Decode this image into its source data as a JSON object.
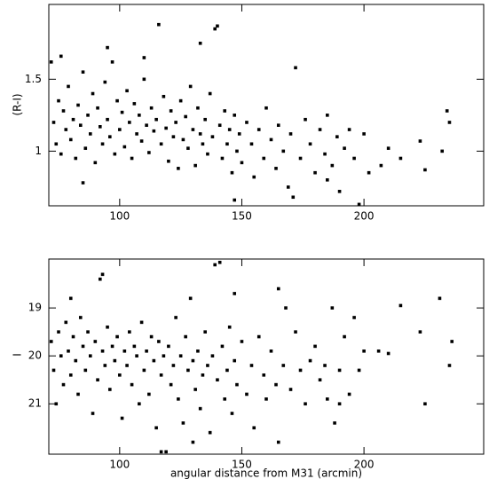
{
  "chart_data": [
    {
      "type": "scatter",
      "y_label": "(R-I)",
      "color": "#000000",
      "xlim": [
        71,
        249
      ],
      "ylim": [
        0.62,
        2.02
      ],
      "xticks": [
        100,
        150,
        200
      ],
      "yticks": [
        1,
        1.5
      ],
      "y_inverted": false,
      "x": [
        72,
        73,
        74,
        75,
        76,
        77,
        78,
        79,
        80,
        81,
        82,
        83,
        84,
        85,
        86,
        87,
        88,
        89,
        90,
        91,
        92,
        93,
        94,
        95,
        96,
        97,
        98,
        99,
        100,
        101,
        102,
        103,
        104,
        105,
        106,
        107,
        108,
        109,
        110,
        111,
        112,
        113,
        114,
        115,
        116,
        117,
        118,
        119,
        120,
        121,
        122,
        123,
        124,
        125,
        126,
        127,
        128,
        129,
        130,
        131,
        132,
        133,
        134,
        135,
        136,
        137,
        138,
        139,
        140,
        141,
        142,
        143,
        144,
        145,
        146,
        147,
        148,
        149,
        150,
        152,
        154,
        155,
        157,
        159,
        160,
        162,
        164,
        165,
        167,
        169,
        170,
        172,
        174,
        176,
        178,
        180,
        182,
        184,
        185,
        187,
        189,
        190,
        192,
        194,
        196,
        200,
        202,
        207,
        215,
        223,
        225,
        232,
        234,
        235,
        76,
        85,
        95,
        110,
        133,
        147,
        171,
        185,
        198,
        210
      ],
      "values": [
        1.62,
        1.2,
        1.05,
        1.35,
        0.98,
        1.28,
        1.15,
        1.45,
        1.08,
        1.22,
        0.95,
        1.32,
        1.18,
        1.55,
        1.02,
        1.25,
        1.12,
        1.4,
        0.92,
        1.3,
        1.17,
        1.05,
        1.48,
        1.22,
        1.1,
        1.62,
        0.98,
        1.35,
        1.15,
        1.27,
        1.03,
        1.42,
        1.2,
        0.95,
        1.33,
        1.12,
        1.25,
        1.07,
        1.5,
        1.18,
        0.99,
        1.3,
        1.14,
        1.22,
        1.88,
        1.05,
        1.38,
        1.16,
        0.93,
        1.28,
        1.1,
        1.2,
        0.88,
        1.35,
        1.08,
        1.24,
        1.02,
        1.45,
        1.15,
        0.9,
        1.3,
        1.12,
        1.05,
        1.22,
        0.98,
        1.4,
        1.1,
        1.85,
        1.87,
        1.18,
        0.95,
        1.28,
        1.05,
        1.15,
        0.85,
        1.25,
        1.0,
        1.12,
        0.92,
        1.2,
        1.05,
        0.82,
        1.15,
        0.95,
        1.3,
        1.08,
        0.88,
        1.18,
        1.0,
        0.75,
        1.12,
        1.58,
        0.95,
        1.22,
        1.05,
        0.85,
        1.15,
        0.98,
        1.25,
        0.9,
        1.1,
        0.72,
        1.02,
        1.15,
        0.95,
        1.12,
        0.85,
        0.9,
        0.95,
        1.07,
        0.87,
        1.0,
        1.28,
        1.2,
        1.66,
        0.78,
        1.72,
        1.65,
        1.75,
        0.66,
        0.68,
        0.8,
        0.63,
        1.02
      ]
    },
    {
      "type": "scatter",
      "y_label": "I",
      "x_label": "angular distance from M31 (arcmin)",
      "color": "#000000",
      "xlim": [
        71,
        249
      ],
      "ylim": [
        22.05,
        17.98
      ],
      "xticks": [
        100,
        150,
        200
      ],
      "yticks": [
        19,
        20,
        21
      ],
      "y_inverted": true,
      "x": [
        72,
        73,
        74,
        75,
        76,
        77,
        78,
        79,
        80,
        81,
        82,
        83,
        84,
        85,
        86,
        87,
        88,
        89,
        90,
        91,
        92,
        93,
        94,
        95,
        96,
        97,
        98,
        99,
        100,
        101,
        102,
        103,
        104,
        105,
        106,
        107,
        108,
        109,
        110,
        111,
        112,
        113,
        114,
        115,
        116,
        117,
        118,
        119,
        120,
        121,
        122,
        123,
        124,
        125,
        126,
        127,
        128,
        129,
        130,
        131,
        132,
        133,
        134,
        135,
        136,
        137,
        138,
        139,
        140,
        141,
        142,
        143,
        144,
        145,
        146,
        147,
        148,
        150,
        152,
        154,
        155,
        157,
        159,
        160,
        162,
        164,
        165,
        167,
        168,
        170,
        172,
        174,
        176,
        178,
        180,
        182,
        184,
        185,
        187,
        188,
        190,
        192,
        194,
        196,
        200,
        206,
        215,
        223,
        225,
        231,
        235,
        236,
        80,
        93,
        117,
        130,
        147,
        165,
        198,
        190,
        210
      ],
      "values": [
        19.7,
        20.3,
        21.0,
        19.5,
        20.0,
        20.6,
        19.3,
        19.9,
        20.4,
        19.6,
        20.1,
        20.8,
        19.2,
        19.8,
        20.3,
        19.5,
        20.0,
        21.2,
        19.7,
        20.5,
        18.4,
        19.9,
        20.2,
        19.4,
        20.7,
        19.8,
        20.1,
        19.6,
        20.4,
        21.3,
        19.9,
        20.2,
        19.5,
        20.6,
        19.8,
        20.0,
        21.0,
        19.3,
        20.3,
        19.9,
        20.8,
        19.6,
        20.1,
        21.5,
        19.7,
        20.4,
        20.0,
        22.0,
        19.8,
        20.6,
        20.2,
        19.2,
        20.9,
        20.0,
        21.4,
        19.6,
        20.3,
        18.8,
        20.1,
        20.7,
        19.9,
        21.1,
        20.4,
        19.5,
        20.2,
        21.6,
        20.0,
        18.1,
        20.5,
        18.05,
        19.8,
        20.9,
        20.3,
        19.4,
        21.2,
        20.1,
        20.6,
        19.7,
        20.8,
        20.2,
        21.5,
        19.6,
        20.4,
        20.9,
        19.9,
        20.6,
        21.8,
        20.2,
        19.0,
        20.7,
        19.5,
        20.3,
        21.0,
        20.1,
        19.8,
        20.5,
        20.2,
        20.9,
        19.0,
        21.4,
        20.3,
        19.6,
        20.8,
        19.2,
        19.9,
        19.9,
        18.95,
        19.5,
        21.0,
        18.8,
        20.2,
        19.7,
        18.8,
        18.3,
        22.0,
        21.8,
        18.7,
        18.6,
        20.3,
        21.0,
        19.95
      ]
    }
  ]
}
